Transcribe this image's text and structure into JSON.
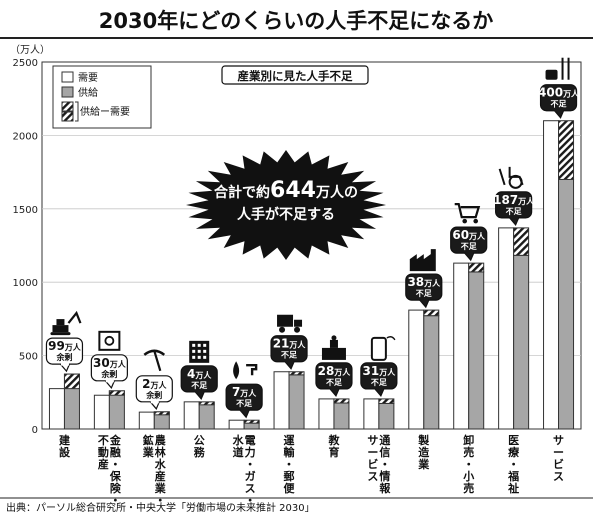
{
  "title": "2030年にどのくらいの人手不足になるか",
  "source": "出典：パーソル総合研究所・中央大学「労働市場の未来推計 2030」",
  "chart_data": {
    "type": "bar",
    "title": "産業別に見た人手不足",
    "ylabel": "（万人）",
    "xlabel": "",
    "ylim": [
      0,
      2500
    ],
    "yticks": [
      0,
      500,
      1000,
      1500,
      2000,
      2500
    ],
    "grid": true,
    "legend_position": "top-left",
    "legend": {
      "demand": "需要",
      "supply": "供給",
      "gap": "供給ー需要"
    },
    "colors": {
      "demand": "#ffffff",
      "supply": "#a6a6a6",
      "badge": "#1a1a1a",
      "callout": "#111111"
    },
    "callout": {
      "prefix": "合計で約",
      "number": "644",
      "suffix": "万人の",
      "line2": "人手が不足する"
    },
    "categories": [
      "建設",
      "金融・保険・不動産",
      "農林水産業・鉱業",
      "公務",
      "電力・ガス・水道",
      "運輸・郵便",
      "教育",
      "通信・情報サービス",
      "製造業",
      "卸売・小売",
      "医療・福祉",
      "サービス"
    ],
    "category_columns": [
      [
        "建設"
      ],
      [
        "金融・保険・",
        "不動産"
      ],
      [
        "農林水産業・",
        "鉱業"
      ],
      [
        "公務"
      ],
      [
        "電力・ガス・",
        "水道"
      ],
      [
        "運輸・郵便"
      ],
      [
        "教育"
      ],
      [
        "通信・情報",
        "サービス"
      ],
      [
        "製造業"
      ],
      [
        "卸売・小売"
      ],
      [
        "医療・福祉"
      ],
      [
        "サービス"
      ]
    ],
    "series": [
      {
        "name": "需要",
        "values": [
          275,
          230,
          115,
          185,
          60,
          390,
          205,
          205,
          810,
          1130,
          1370,
          2100
        ]
      },
      {
        "name": "供給",
        "values": [
          374,
          260,
          117,
          181,
          53,
          369,
          177,
          174,
          772,
          1070,
          1183,
          1700
        ]
      }
    ],
    "gap_labels": [
      {
        "num": "99",
        "unit": "万人",
        "note": "余剰",
        "surplus": true
      },
      {
        "num": "30",
        "unit": "万人",
        "note": "余剰",
        "surplus": true
      },
      {
        "num": "2",
        "unit": "万人",
        "note": "余剰",
        "surplus": true
      },
      {
        "num": "4",
        "unit": "万人",
        "note": "不足",
        "surplus": false
      },
      {
        "num": "7",
        "unit": "万人",
        "note": "不足",
        "surplus": false
      },
      {
        "num": "21",
        "unit": "万人",
        "note": "不足",
        "surplus": false
      },
      {
        "num": "28",
        "unit": "万人",
        "note": "不足",
        "surplus": false
      },
      {
        "num": "31",
        "unit": "万人",
        "note": "不足",
        "surplus": false
      },
      {
        "num": "38",
        "unit": "万人",
        "note": "不足",
        "surplus": false
      },
      {
        "num": "60",
        "unit": "万人",
        "note": "不足",
        "surplus": false
      },
      {
        "num": "187",
        "unit": "万人",
        "note": "不足",
        "surplus": false
      },
      {
        "num": "400",
        "unit": "万人",
        "note": "不足",
        "surplus": false
      }
    ],
    "icons": [
      "excavator-icon",
      "safe-icon",
      "pickaxe-icon",
      "building-icon",
      "flame-faucet-icon",
      "truck-icon",
      "school-icon",
      "smartphone-icon",
      "factory-icon",
      "shopping-cart-icon",
      "wheelchair-icon",
      "cutlery-icon"
    ]
  }
}
